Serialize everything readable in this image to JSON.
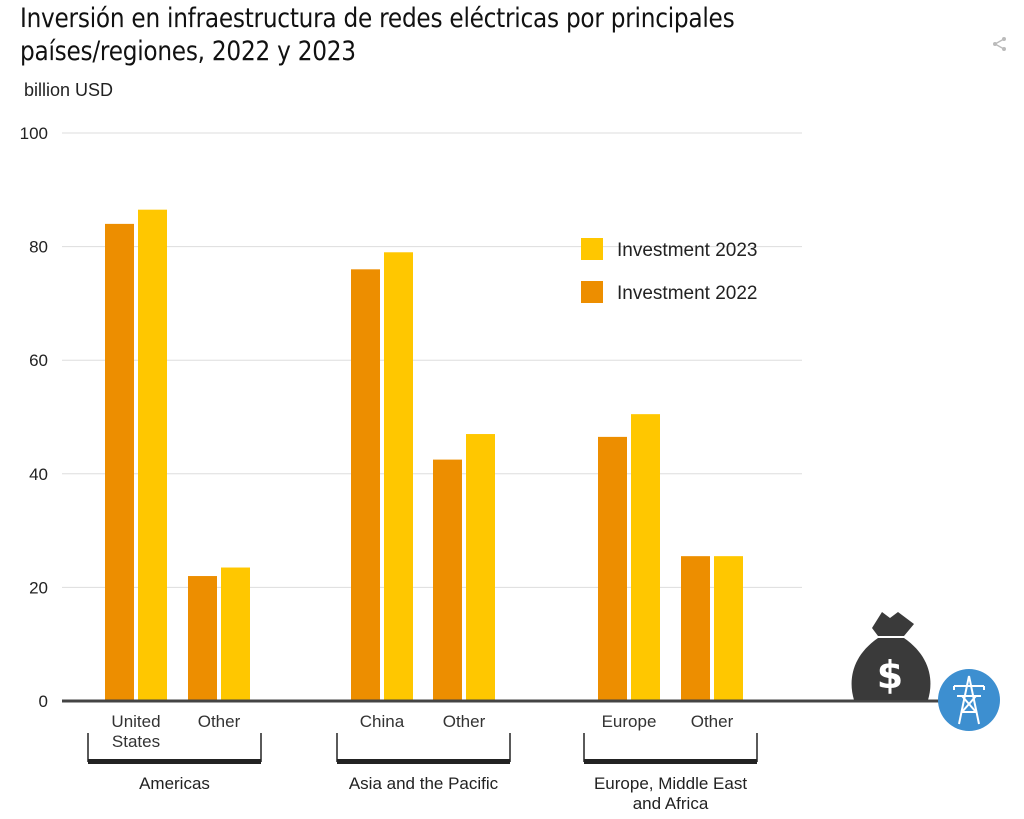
{
  "title": "Inversión en infraestructura de redes eléctricas por principales países/regiones, 2022 y 2023",
  "unit_label": "billion USD",
  "icons": {
    "share": "share-icon",
    "money_bag": "money-bag-icon",
    "transmission_tower": "transmission-tower-icon"
  },
  "colors": {
    "investment_2022": "#ED8E00",
    "investment_2023": "#FFC700",
    "grid": "#dddddd",
    "axis": "#444444",
    "bag": "#3a3a3a",
    "tower_circle": "#3d8fd0"
  },
  "chart_data": {
    "type": "bar",
    "ylabel": "billion USD",
    "ylim": [
      0,
      100
    ],
    "yticks": [
      0,
      20,
      40,
      60,
      80,
      100
    ],
    "grid": true,
    "legend_position": "top-right",
    "categories": [
      "United States",
      "Other",
      "China",
      "Other",
      "Europe",
      "Other"
    ],
    "groups": [
      {
        "label": "Americas",
        "categories": [
          "United States",
          "Other"
        ]
      },
      {
        "label": "Asia and the Pacific",
        "categories": [
          "China",
          "Other"
        ]
      },
      {
        "label": "Europe, Middle East and Africa",
        "categories": [
          "Europe",
          "Other"
        ]
      }
    ],
    "series": [
      {
        "name": "Investment 2022",
        "values": [
          84,
          22,
          76,
          42.5,
          46.5,
          25.5
        ]
      },
      {
        "name": "Investment 2023",
        "values": [
          86.5,
          23.5,
          79,
          47,
          50.5,
          25.5
        ]
      }
    ],
    "legend_order": [
      "Investment 2023",
      "Investment 2022"
    ]
  }
}
